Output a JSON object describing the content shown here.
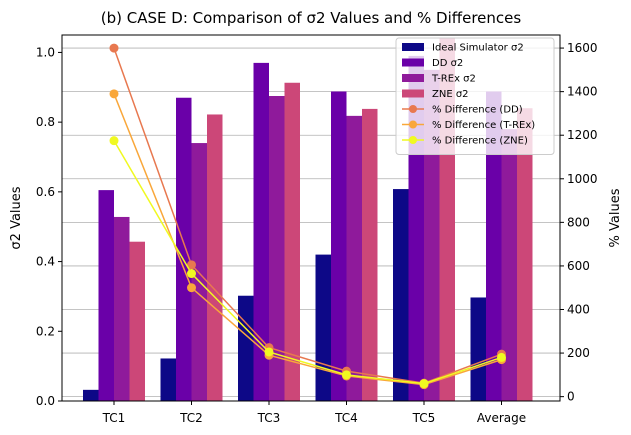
{
  "chart_data": {
    "type": "bar",
    "title": "(b) CASE D: Comparison of σ2 Values and % Differences",
    "xlabel": "",
    "ylabel": "σ2 Values",
    "y2label": "% Values",
    "categories": [
      "TC1",
      "TC2",
      "TC3",
      "TC4",
      "TC5",
      "Average"
    ],
    "ylim": [
      0,
      1.05
    ],
    "y2lim": [
      -20,
      1660
    ],
    "yticks": [
      "0.0",
      "0.2",
      "0.4",
      "0.6",
      "0.8",
      "1.0"
    ],
    "y2ticks": [
      "0",
      "200",
      "400",
      "600",
      "800",
      "1000",
      "1200",
      "1400",
      "1600"
    ],
    "grid": "horizontal, secondary axis",
    "legend_position": "top-right",
    "series": [
      {
        "name": "Ideal Simulator σ2",
        "kind": "bar",
        "axis": "left",
        "color": "#0d0887",
        "values": [
          0.032,
          0.122,
          0.302,
          0.42,
          0.608,
          0.297
        ]
      },
      {
        "name": "DD σ2",
        "kind": "bar",
        "axis": "left",
        "color": "#6a00a8",
        "values": [
          0.605,
          0.87,
          0.97,
          0.888,
          0.99,
          0.888
        ]
      },
      {
        "name": "T-REx σ2",
        "kind": "bar",
        "axis": "left",
        "color": "#8f1a9b",
        "values": [
          0.528,
          0.74,
          0.875,
          0.818,
          0.95,
          0.78
        ]
      },
      {
        "name": "ZNE σ2",
        "kind": "bar",
        "axis": "left",
        "color": "#cc4778",
        "values": [
          0.457,
          0.822,
          0.913,
          0.838,
          1.04,
          0.84
        ]
      },
      {
        "name": "% Difference (DD)",
        "kind": "line",
        "axis": "right",
        "color": "#e8784f",
        "values": [
          1600,
          605,
          225,
          117,
          62,
          195
        ]
      },
      {
        "name": "% Difference (T-REx)",
        "kind": "line",
        "axis": "right",
        "color": "#f9a73a",
        "values": [
          1390,
          500,
          190,
          95,
          55,
          170
        ]
      },
      {
        "name": "% Difference (ZNE)",
        "kind": "line",
        "axis": "right",
        "color": "#f0f921",
        "values": [
          1175,
          565,
          205,
          100,
          60,
          180
        ]
      }
    ]
  }
}
